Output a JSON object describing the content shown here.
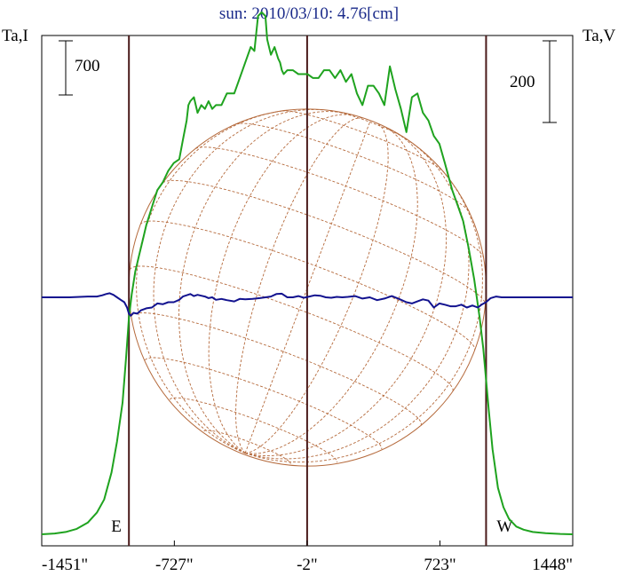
{
  "chart_data": {
    "type": "line",
    "title": "sun: 2010/03/10: 4.76[cm]",
    "left_axis_label": "Ta,I",
    "right_axis_label": "Ta,V",
    "left_scale_bar_label": "700",
    "right_scale_bar_label": "200",
    "xlim": [
      -1451,
      1448
    ],
    "x_tick_labels": [
      "-1451\"",
      "-727\"",
      "-2\"",
      "723\"",
      "1448\""
    ],
    "x_ticks": [
      -1451,
      -727,
      -2,
      723,
      1448
    ],
    "limb_markers": [
      {
        "label": "E",
        "x": -975
      },
      {
        "label": "W",
        "x": 975
      }
    ],
    "center_marker_x": -2,
    "solar_disk": {
      "radius": 975,
      "color": "#b56a3c"
    },
    "grid": false,
    "series": [
      {
        "name": "",
        "color": "#1fa31f",
        "axis": "left",
        "x": [
          -1451,
          -1380,
          -1320,
          -1260,
          -1200,
          -1150,
          -1110,
          -1070,
          -1040,
          -1010,
          -990,
          -975,
          -960,
          -940,
          -920,
          -900,
          -880,
          -860,
          -840,
          -820,
          -790,
          -760,
          -730,
          -700,
          -680,
          -660,
          -650,
          -640,
          -620,
          -600,
          -580,
          -560,
          -540,
          -520,
          -500,
          -470,
          -440,
          -400,
          -370,
          -340,
          -310,
          -290,
          -270,
          -250,
          -230,
          -220,
          -200,
          -180,
          -160,
          -150,
          -140,
          -130,
          -110,
          -80,
          -50,
          -20,
          0,
          30,
          60,
          90,
          120,
          150,
          180,
          210,
          240,
          270,
          300,
          330,
          360,
          390,
          420,
          450,
          480,
          510,
          540,
          570,
          600,
          630,
          660,
          690,
          720,
          750,
          790,
          820,
          850,
          880,
          910,
          940,
          960,
          975,
          990,
          1010,
          1040,
          1070,
          1100,
          1140,
          1180,
          1230,
          1300,
          1380,
          1448
        ],
        "y": [
          0,
          10,
          30,
          70,
          150,
          280,
          450,
          800,
          1200,
          1700,
          2300,
          2800,
          3100,
          3400,
          3600,
          3800,
          4000,
          4150,
          4300,
          4450,
          4550,
          4700,
          4800,
          4850,
          5100,
          5350,
          5550,
          5600,
          5650,
          5450,
          5550,
          5500,
          5600,
          5500,
          5550,
          5550,
          5700,
          5700,
          5900,
          6100,
          6300,
          6250,
          6700,
          6750,
          6700,
          6400,
          6200,
          6300,
          6150,
          6100,
          6000,
          5950,
          6000,
          6000,
          5950,
          5950,
          5950,
          5900,
          5900,
          6000,
          6000,
          5900,
          6000,
          5850,
          5950,
          5700,
          5550,
          5800,
          5800,
          5700,
          5550,
          6050,
          5750,
          5500,
          5200,
          5650,
          5700,
          5450,
          5350,
          5150,
          5050,
          4800,
          4450,
          4250,
          4050,
          3700,
          3300,
          2800,
          2400,
          2000,
          1600,
          1100,
          600,
          350,
          200,
          100,
          60,
          30,
          15,
          5,
          0
        ]
      },
      {
        "name": "",
        "color": "#12128f",
        "axis": "right",
        "x": [
          -1451,
          -1300,
          -1200,
          -1150,
          -1120,
          -1100,
          -1080,
          -1060,
          -1040,
          -1020,
          -1000,
          -985,
          -975,
          -965,
          -950,
          -930,
          -910,
          -880,
          -850,
          -820,
          -790,
          -760,
          -730,
          -700,
          -680,
          -660,
          -640,
          -620,
          -600,
          -580,
          -560,
          -540,
          -520,
          -500,
          -470,
          -440,
          -400,
          -370,
          -340,
          -300,
          -260,
          -230,
          -200,
          -170,
          -140,
          -110,
          -80,
          -50,
          -20,
          10,
          40,
          70,
          100,
          130,
          160,
          190,
          220,
          260,
          300,
          340,
          380,
          420,
          460,
          500,
          540,
          570,
          600,
          630,
          660,
          690,
          720,
          750,
          780,
          810,
          840,
          870,
          900,
          930,
          950,
          975,
          1000,
          1030,
          1060,
          1100,
          1150,
          1250,
          1350,
          1448
        ],
        "y": [
          0,
          0,
          2,
          2,
          5,
          8,
          10,
          6,
          0,
          -6,
          -12,
          -25,
          -40,
          -45,
          -38,
          -40,
          -32,
          -27,
          -25,
          -15,
          -17,
          -12,
          -12,
          -6,
          2,
          5,
          8,
          3,
          6,
          4,
          2,
          -2,
          0,
          -6,
          -4,
          -7,
          -10,
          -4,
          -5,
          -4,
          -2,
          0,
          2,
          8,
          9,
          0,
          0,
          3,
          -1,
          2,
          5,
          4,
          0,
          -1,
          1,
          0,
          1,
          3,
          -3,
          0,
          -7,
          -3,
          3,
          -4,
          -12,
          -15,
          -10,
          -5,
          -8,
          -25,
          -15,
          -18,
          -22,
          -22,
          -18,
          -25,
          -20,
          -25,
          -18,
          -12,
          -2,
          2,
          0,
          0,
          0,
          0,
          0,
          0
        ]
      }
    ]
  }
}
